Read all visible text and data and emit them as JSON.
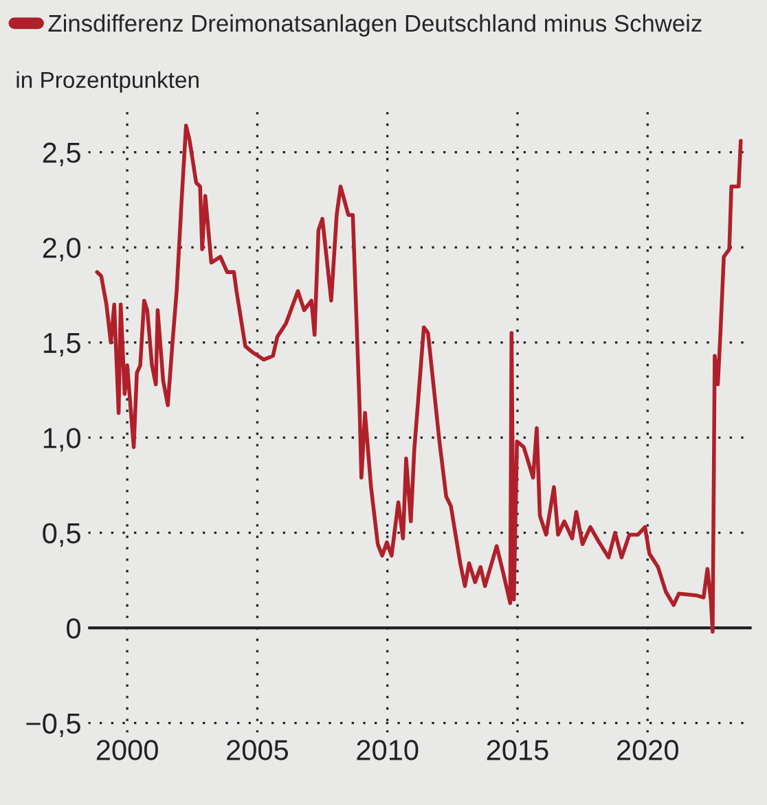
{
  "chart_data": {
    "type": "line",
    "ylabel": "in Prozentpunkten",
    "series": [
      {
        "name": "Zinsdifferenz Dreimonatsanlagen Deutschland minus Schweiz",
        "color": "#b0202a",
        "x": [
          1998.84,
          1999.0,
          1999.2,
          1999.37,
          1999.5,
          1999.67,
          1999.75,
          1999.9,
          2000.0,
          2000.25,
          2000.37,
          2000.5,
          2000.65,
          2000.77,
          2000.95,
          2001.1,
          2001.17,
          2001.38,
          2001.56,
          2001.74,
          2001.9,
          2002.1,
          2002.26,
          2002.4,
          2002.65,
          2002.8,
          2002.88,
          2003.0,
          2003.23,
          2003.58,
          2003.84,
          2004.1,
          2004.2,
          2004.54,
          2004.8,
          2005.25,
          2005.6,
          2005.77,
          2006.1,
          2006.56,
          2006.8,
          2007.08,
          2007.2,
          2007.35,
          2007.5,
          2007.7,
          2007.84,
          2008.05,
          2008.2,
          2008.5,
          2008.67,
          2008.93,
          2009.0,
          2009.14,
          2009.37,
          2009.63,
          2009.8,
          2009.98,
          2010.16,
          2010.42,
          2010.6,
          2010.72,
          2010.9,
          2011.03,
          2011.4,
          2011.56,
          2012.0,
          2012.26,
          2012.44,
          2012.8,
          2012.98,
          2013.14,
          2013.37,
          2013.58,
          2013.75,
          2014.2,
          2014.45,
          2014.72,
          2014.77,
          2014.86,
          2014.98,
          2015.24,
          2015.6,
          2015.74,
          2015.86,
          2016.1,
          2016.4,
          2016.56,
          2016.8,
          2017.1,
          2017.26,
          2017.5,
          2017.8,
          2018.05,
          2018.5,
          2018.75,
          2019.0,
          2019.3,
          2019.63,
          2019.9,
          2020.07,
          2020.4,
          2020.7,
          2021.0,
          2021.2,
          2021.9,
          2022.15,
          2022.3,
          2022.43,
          2022.5,
          2022.58,
          2022.7,
          2022.8,
          2022.93,
          2023.14,
          2023.22,
          2023.5,
          2023.58
        ],
        "values": [
          1.87,
          1.85,
          1.7,
          1.5,
          1.7,
          1.13,
          1.7,
          1.23,
          1.38,
          0.95,
          1.34,
          1.38,
          1.72,
          1.67,
          1.38,
          1.28,
          1.67,
          1.3,
          1.17,
          1.5,
          1.77,
          2.27,
          2.64,
          2.56,
          2.34,
          2.32,
          1.99,
          2.27,
          1.92,
          1.95,
          1.87,
          1.87,
          1.77,
          1.48,
          1.45,
          1.41,
          1.43,
          1.53,
          1.6,
          1.77,
          1.67,
          1.72,
          1.54,
          2.09,
          2.15,
          1.9,
          1.72,
          2.17,
          2.32,
          2.17,
          2.17,
          1.16,
          0.79,
          1.13,
          0.74,
          0.44,
          0.38,
          0.45,
          0.38,
          0.66,
          0.47,
          0.89,
          0.56,
          0.93,
          1.58,
          1.55,
          0.98,
          0.69,
          0.64,
          0.34,
          0.22,
          0.34,
          0.24,
          0.32,
          0.22,
          0.43,
          0.29,
          0.13,
          1.55,
          0.15,
          0.98,
          0.95,
          0.79,
          1.05,
          0.59,
          0.49,
          0.74,
          0.49,
          0.56,
          0.47,
          0.61,
          0.44,
          0.53,
          0.47,
          0.37,
          0.5,
          0.37,
          0.49,
          0.49,
          0.53,
          0.39,
          0.32,
          0.19,
          0.12,
          0.18,
          0.17,
          0.16,
          0.31,
          0.15,
          -0.02,
          1.43,
          1.28,
          1.55,
          1.95,
          1.99,
          2.32,
          2.32,
          2.56
        ]
      }
    ],
    "xlim": [
      1998.5,
      2024.0
    ],
    "xticks": [
      2000,
      2005,
      2010,
      2015,
      2020
    ],
    "ylim": [
      -0.55,
      2.75
    ],
    "yticks": [
      {
        "value": -0.5,
        "label": "−0,5"
      },
      {
        "value": 0,
        "label": "0"
      },
      {
        "value": 0.5,
        "label": "0,5"
      },
      {
        "value": 1.0,
        "label": "1,0"
      },
      {
        "value": 1.5,
        "label": "1,5"
      },
      {
        "value": 2.0,
        "label": "2,0"
      },
      {
        "value": 2.5,
        "label": "2,5"
      }
    ],
    "ref_lines": [
      {
        "axis": "y",
        "value": 0,
        "color": "#222222",
        "line_style": "solid"
      }
    ],
    "grid": true,
    "legend": "top left",
    "line_style": "solid",
    "marker": "none"
  }
}
